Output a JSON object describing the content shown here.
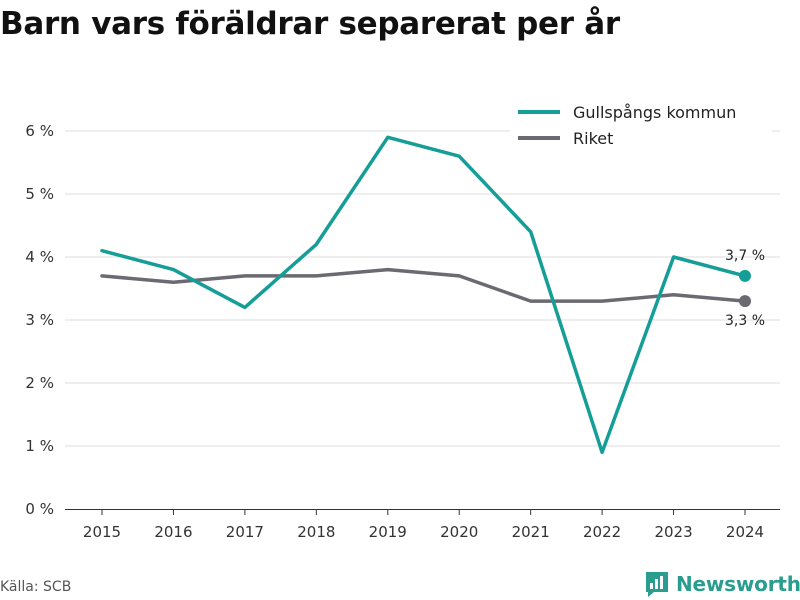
{
  "title": "Barn vars föräldrar separerat per år",
  "source": "Källa: SCB",
  "brand": {
    "name": "Newsworthy",
    "icon": "newsworthy-logo-icon"
  },
  "colors": {
    "series1": "#149e97",
    "series2": "#6b6a72",
    "grid": "#dddddd",
    "brand": "#2a9d8f"
  },
  "chart_data": {
    "type": "line",
    "title": "Barn vars föräldrar separerat per år",
    "x": [
      "2015",
      "2016",
      "2017",
      "2018",
      "2019",
      "2020",
      "2021",
      "2022",
      "2023",
      "2024"
    ],
    "ylim": [
      0,
      6
    ],
    "yticks": [
      0,
      1,
      2,
      3,
      4,
      5,
      6
    ],
    "ytick_labels": [
      "0 %",
      "1 %",
      "2 %",
      "3 %",
      "4 %",
      "5 %",
      "6 %"
    ],
    "grid": "horizontal",
    "legend_position": "top-right",
    "series": [
      {
        "name": "Gullspångs kommun",
        "color": "#149e97",
        "values": [
          4.1,
          3.8,
          3.2,
          4.2,
          5.9,
          5.6,
          4.4,
          0.9,
          4.0,
          3.7
        ],
        "end_label": "3,7 %"
      },
      {
        "name": "Riket",
        "color": "#6b6a72",
        "values": [
          3.7,
          3.6,
          3.7,
          3.7,
          3.8,
          3.7,
          3.3,
          3.3,
          3.4,
          3.3
        ],
        "end_label": "3,3 %"
      }
    ]
  }
}
